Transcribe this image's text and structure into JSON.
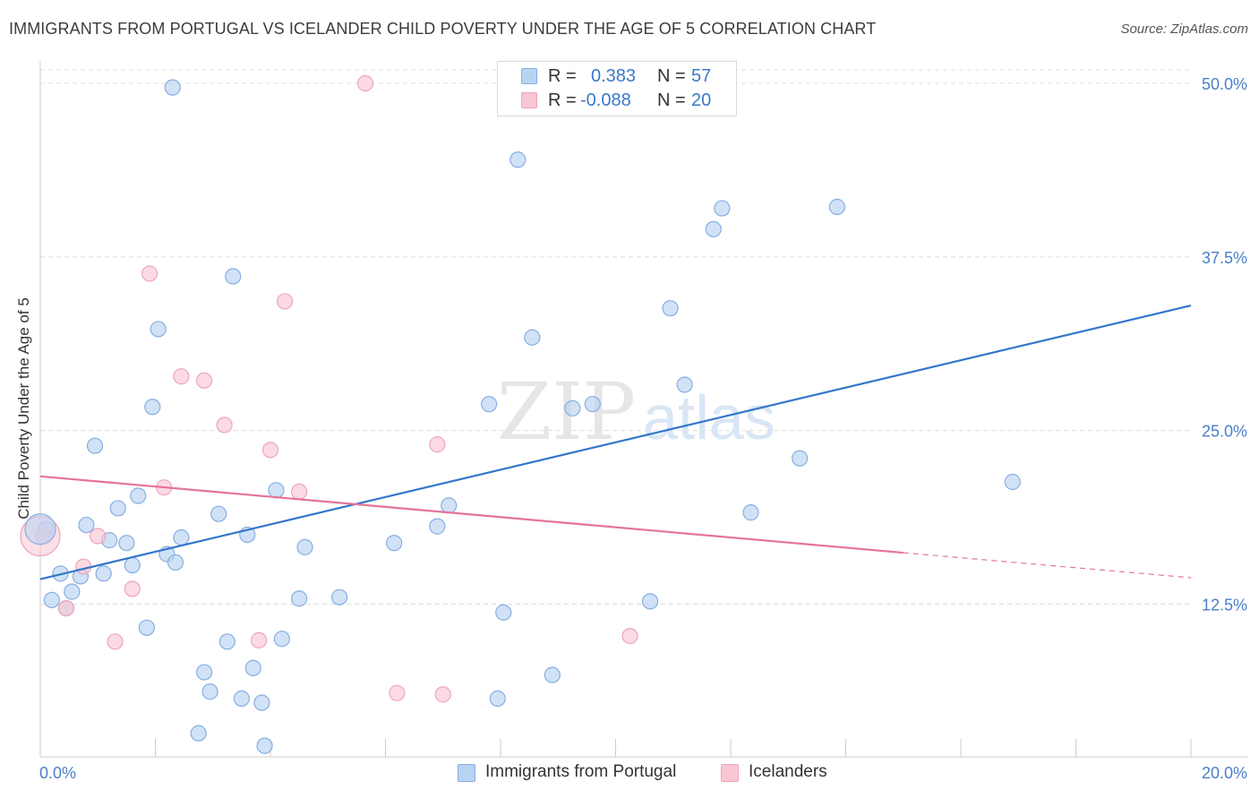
{
  "title": "IMMIGRANTS FROM PORTUGAL VS ICELANDER CHILD POVERTY UNDER THE AGE OF 5 CORRELATION CHART",
  "source": "Source: ZipAtlas.com",
  "watermark": {
    "zip": "ZIP",
    "atlas": "atlas"
  },
  "stats": [
    {
      "r_label": "R =",
      "r_value": "0.383",
      "n_label": "N =",
      "n_value": "57"
    },
    {
      "r_label": "R =",
      "r_value": "-0.088",
      "n_label": "N =",
      "n_value": "20"
    }
  ],
  "chart_data": {
    "type": "scatter",
    "title": "IMMIGRANTS FROM PORTUGAL VS ICELANDER CHILD POVERTY UNDER THE AGE OF 5 CORRELATION CHART",
    "xlabel": "",
    "ylabel": "Child Poverty Under the Age of 5",
    "xlim": [
      0,
      20
    ],
    "ylim": [
      1.5,
      52
    ],
    "x_tick_labels": [
      "0.0%",
      "20.0%"
    ],
    "y_ticks": [
      12.5,
      25.0,
      37.5,
      50.0
    ],
    "y_tick_labels": [
      "12.5%",
      "25.0%",
      "37.5%",
      "50.0%"
    ],
    "grid": true,
    "legend_position": "bottom-center",
    "colors": {
      "portugal_fill": "#b9d3f3",
      "portugal_stroke": "#86aee0",
      "portugal_line": "#3376cc",
      "iceland_fill": "#f9c6d4",
      "iceland_stroke": "#eda6ba",
      "iceland_line": "#e4739a",
      "tick_label": "#4a7fc8",
      "grid": "#dcdcdc"
    },
    "series": [
      {
        "name": "Immigrants from Portugal",
        "color": "#b9d3f3",
        "points": [
          [
            0.1,
            17.9
          ],
          [
            0.2,
            12.8
          ],
          [
            0.35,
            14.7
          ],
          [
            0.45,
            12.2
          ],
          [
            0.55,
            13.4
          ],
          [
            0.7,
            14.5
          ],
          [
            0.8,
            18.2
          ],
          [
            0.95,
            23.9
          ],
          [
            1.1,
            14.7
          ],
          [
            1.2,
            17.1
          ],
          [
            1.35,
            19.4
          ],
          [
            1.5,
            16.9
          ],
          [
            1.6,
            15.3
          ],
          [
            1.7,
            20.3
          ],
          [
            1.85,
            10.8
          ],
          [
            1.95,
            26.7
          ],
          [
            2.05,
            32.3
          ],
          [
            2.2,
            16.1
          ],
          [
            2.35,
            15.5
          ],
          [
            2.45,
            17.3
          ],
          [
            2.3,
            49.7
          ],
          [
            2.75,
            3.2
          ],
          [
            2.85,
            7.6
          ],
          [
            2.95,
            6.2
          ],
          [
            3.1,
            19.0
          ],
          [
            3.25,
            9.8
          ],
          [
            3.35,
            36.1
          ],
          [
            3.5,
            5.7
          ],
          [
            3.6,
            17.5
          ],
          [
            3.7,
            7.9
          ],
          [
            3.85,
            5.4
          ],
          [
            3.9,
            2.3
          ],
          [
            4.1,
            20.7
          ],
          [
            4.2,
            10.0
          ],
          [
            4.5,
            12.9
          ],
          [
            4.6,
            16.6
          ],
          [
            5.2,
            13.0
          ],
          [
            6.15,
            16.9
          ],
          [
            6.9,
            18.1
          ],
          [
            7.1,
            19.6
          ],
          [
            7.8,
            26.9
          ],
          [
            7.95,
            5.7
          ],
          [
            8.05,
            11.9
          ],
          [
            8.3,
            44.5
          ],
          [
            8.55,
            31.7
          ],
          [
            8.9,
            7.4
          ],
          [
            9.25,
            26.6
          ],
          [
            9.6,
            26.9
          ],
          [
            10.6,
            12.7
          ],
          [
            10.95,
            33.8
          ],
          [
            11.2,
            28.3
          ],
          [
            11.7,
            39.5
          ],
          [
            11.85,
            41.0
          ],
          [
            12.35,
            19.1
          ],
          [
            13.2,
            23.0
          ],
          [
            13.85,
            41.1
          ],
          [
            16.9,
            21.3
          ]
        ]
      },
      {
        "name": "Icelanders",
        "color": "#f9c6d4",
        "points": [
          [
            0.05,
            17.4
          ],
          [
            0.45,
            12.2
          ],
          [
            0.75,
            15.2
          ],
          [
            1.0,
            17.4
          ],
          [
            1.3,
            9.8
          ],
          [
            1.6,
            13.6
          ],
          [
            1.9,
            36.3
          ],
          [
            2.15,
            20.9
          ],
          [
            2.45,
            28.9
          ],
          [
            2.85,
            28.6
          ],
          [
            3.2,
            25.4
          ],
          [
            3.8,
            9.9
          ],
          [
            4.0,
            23.6
          ],
          [
            4.25,
            34.3
          ],
          [
            4.5,
            20.6
          ],
          [
            5.65,
            50.0
          ],
          [
            6.2,
            6.1
          ],
          [
            6.9,
            24.0
          ],
          [
            7.0,
            6.0
          ],
          [
            10.25,
            10.2
          ]
        ]
      }
    ],
    "trendlines": [
      {
        "series": "Immigrants from Portugal",
        "x": [
          0,
          20
        ],
        "y": [
          14.3,
          34.0
        ]
      },
      {
        "series": "Icelanders",
        "x": [
          0,
          15
        ],
        "y": [
          21.7,
          16.2
        ],
        "dashed_to": [
          20,
          14.4
        ]
      }
    ]
  },
  "legend": [
    {
      "label": "Immigrants from Portugal"
    },
    {
      "label": "Icelanders"
    }
  ]
}
